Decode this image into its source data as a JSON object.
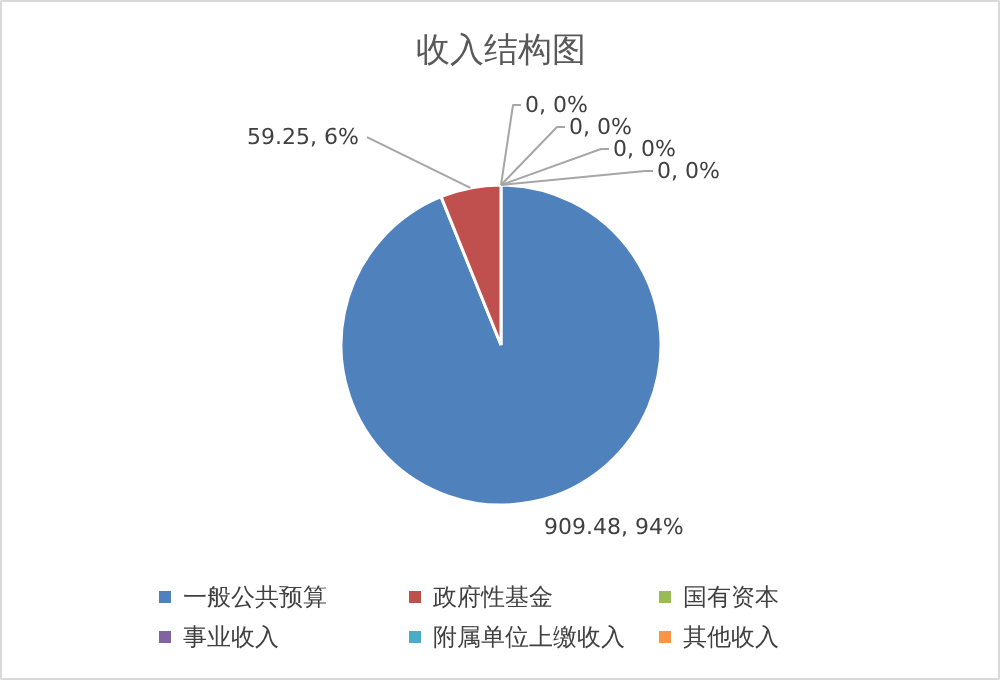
{
  "chart_data": {
    "type": "pie",
    "title": "收入结构图",
    "categories": [
      "一般公共预算",
      "政府性基金",
      "国有资本",
      "事业收入",
      "附属单位上缴收入",
      "其他收入"
    ],
    "values": [
      909.48,
      59.25,
      0,
      0,
      0,
      0
    ],
    "colors": [
      "#4f81bd",
      "#c0504d",
      "#9bbb59",
      "#8064a2",
      "#4bacc6",
      "#f79646"
    ],
    "value_labels": [
      "909.48, 94%",
      "59.25, 6%",
      "0, 0%",
      "0, 0%",
      "0, 0%",
      "0, 0%"
    ],
    "legend": "bottom"
  }
}
